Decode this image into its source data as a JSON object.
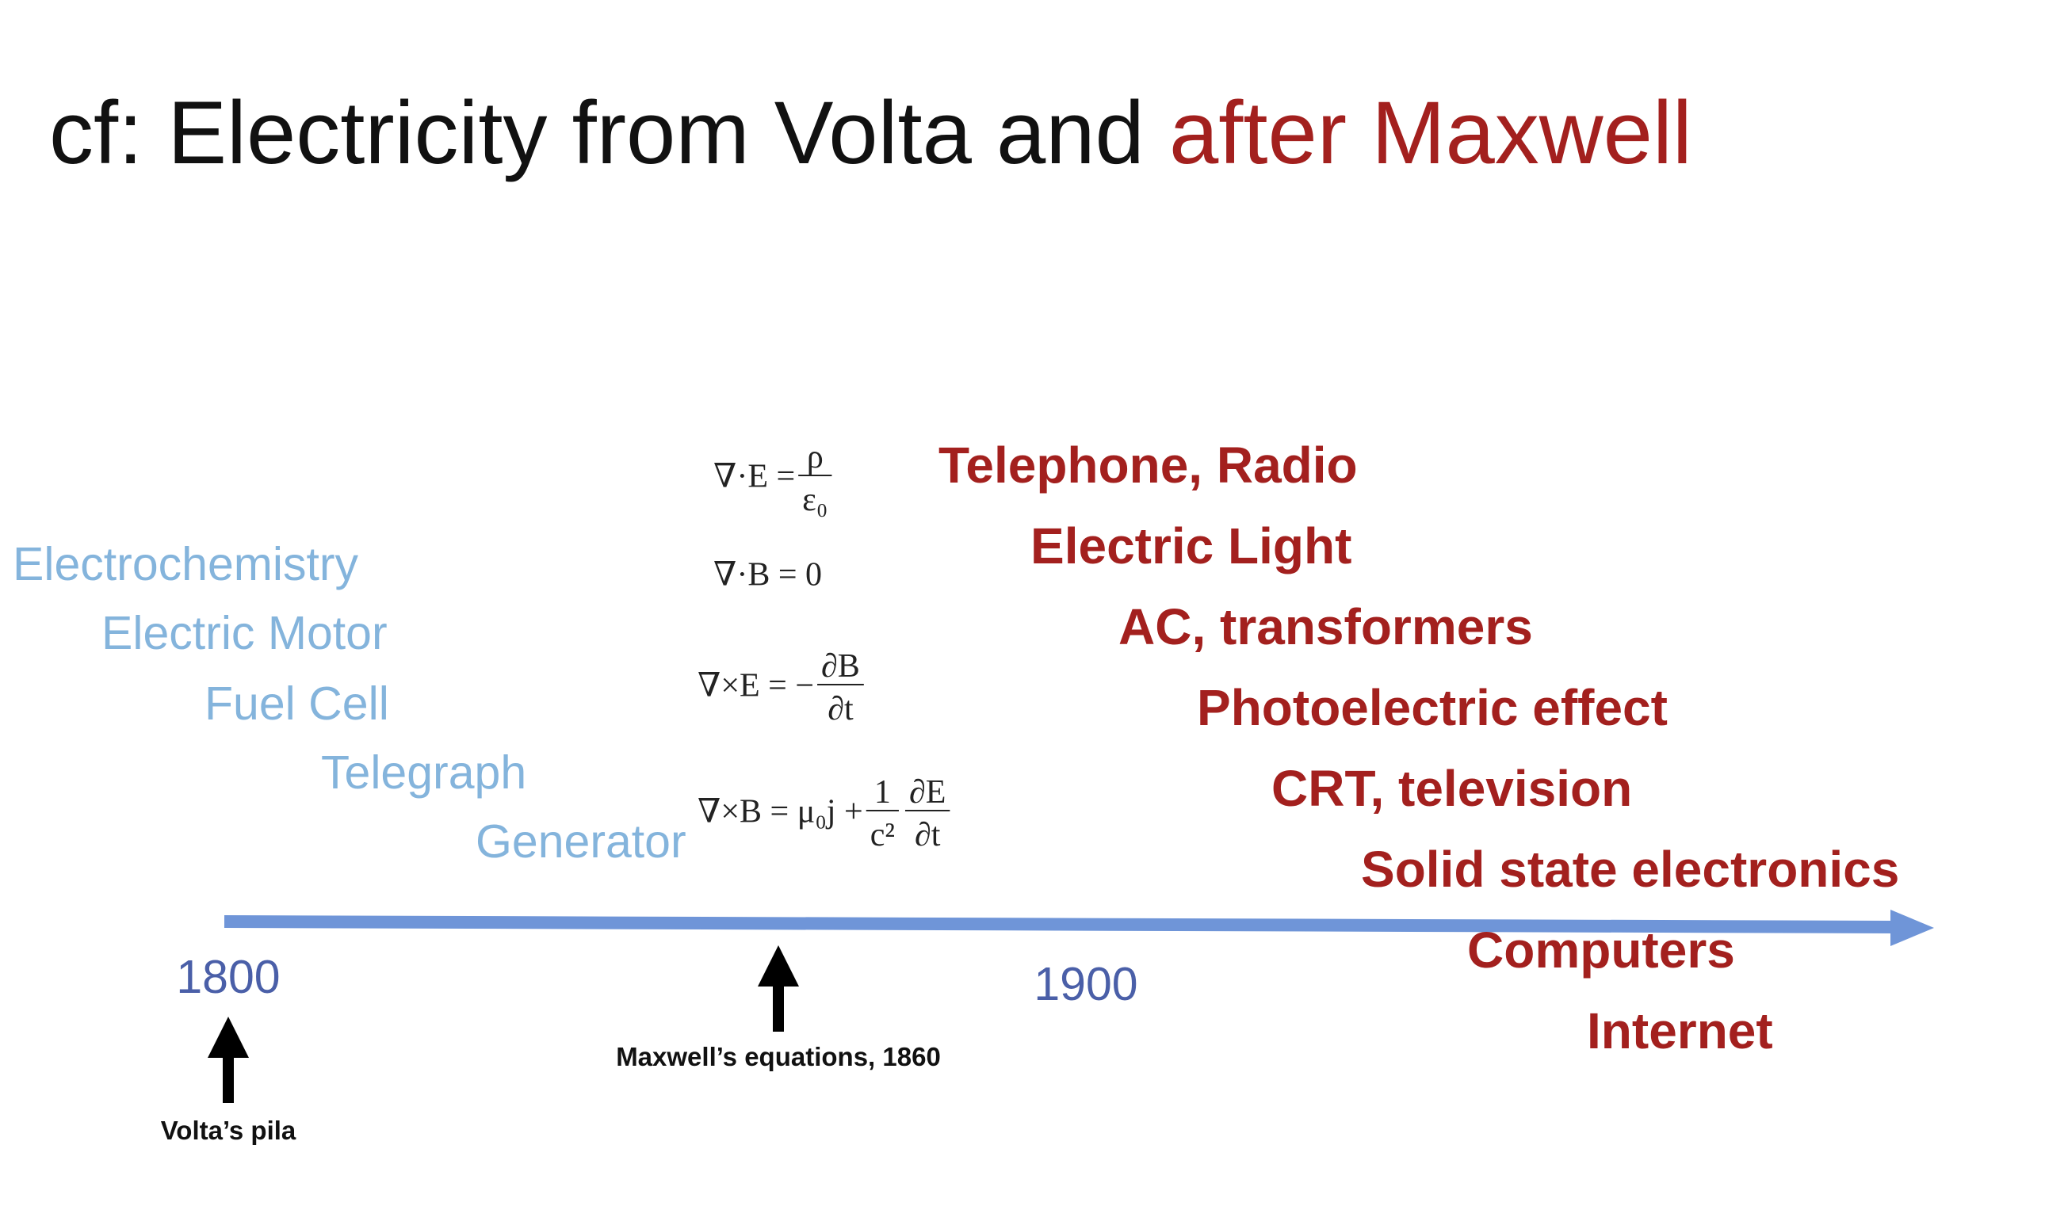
{
  "title": {
    "part1": "cf:  Electricity from Volta and ",
    "part2": "after Maxwell"
  },
  "before_items": [
    "Electrochemistry",
    "Electric Motor",
    "Fuel Cell",
    "Telegraph",
    "Generator"
  ],
  "after_items": [
    "Telephone, Radio",
    "Electric Light",
    "AC, transformers",
    "Photoelectric effect",
    "CRT, television",
    "Solid state electronics",
    "Computers",
    "Internet"
  ],
  "equations": [
    [
      {
        "text": "∇·E = "
      },
      {
        "num": "ρ",
        "den": "ε₀"
      }
    ],
    [
      {
        "text": "∇·B = 0"
      }
    ],
    [
      {
        "text": "∇×E = −"
      },
      {
        "num": "∂B",
        "den": "∂t"
      }
    ],
    [
      {
        "text": "∇×B = μ₀j + "
      },
      {
        "num": "1",
        "den": "c²"
      },
      {
        "num": "∂E",
        "den": "∂t"
      }
    ]
  ],
  "timeline": {
    "start_label": "1800",
    "mid_label": "1900"
  },
  "annotations": {
    "volta": "Volta’s pila",
    "maxwell": "Maxwell’s equations, 1860"
  }
}
